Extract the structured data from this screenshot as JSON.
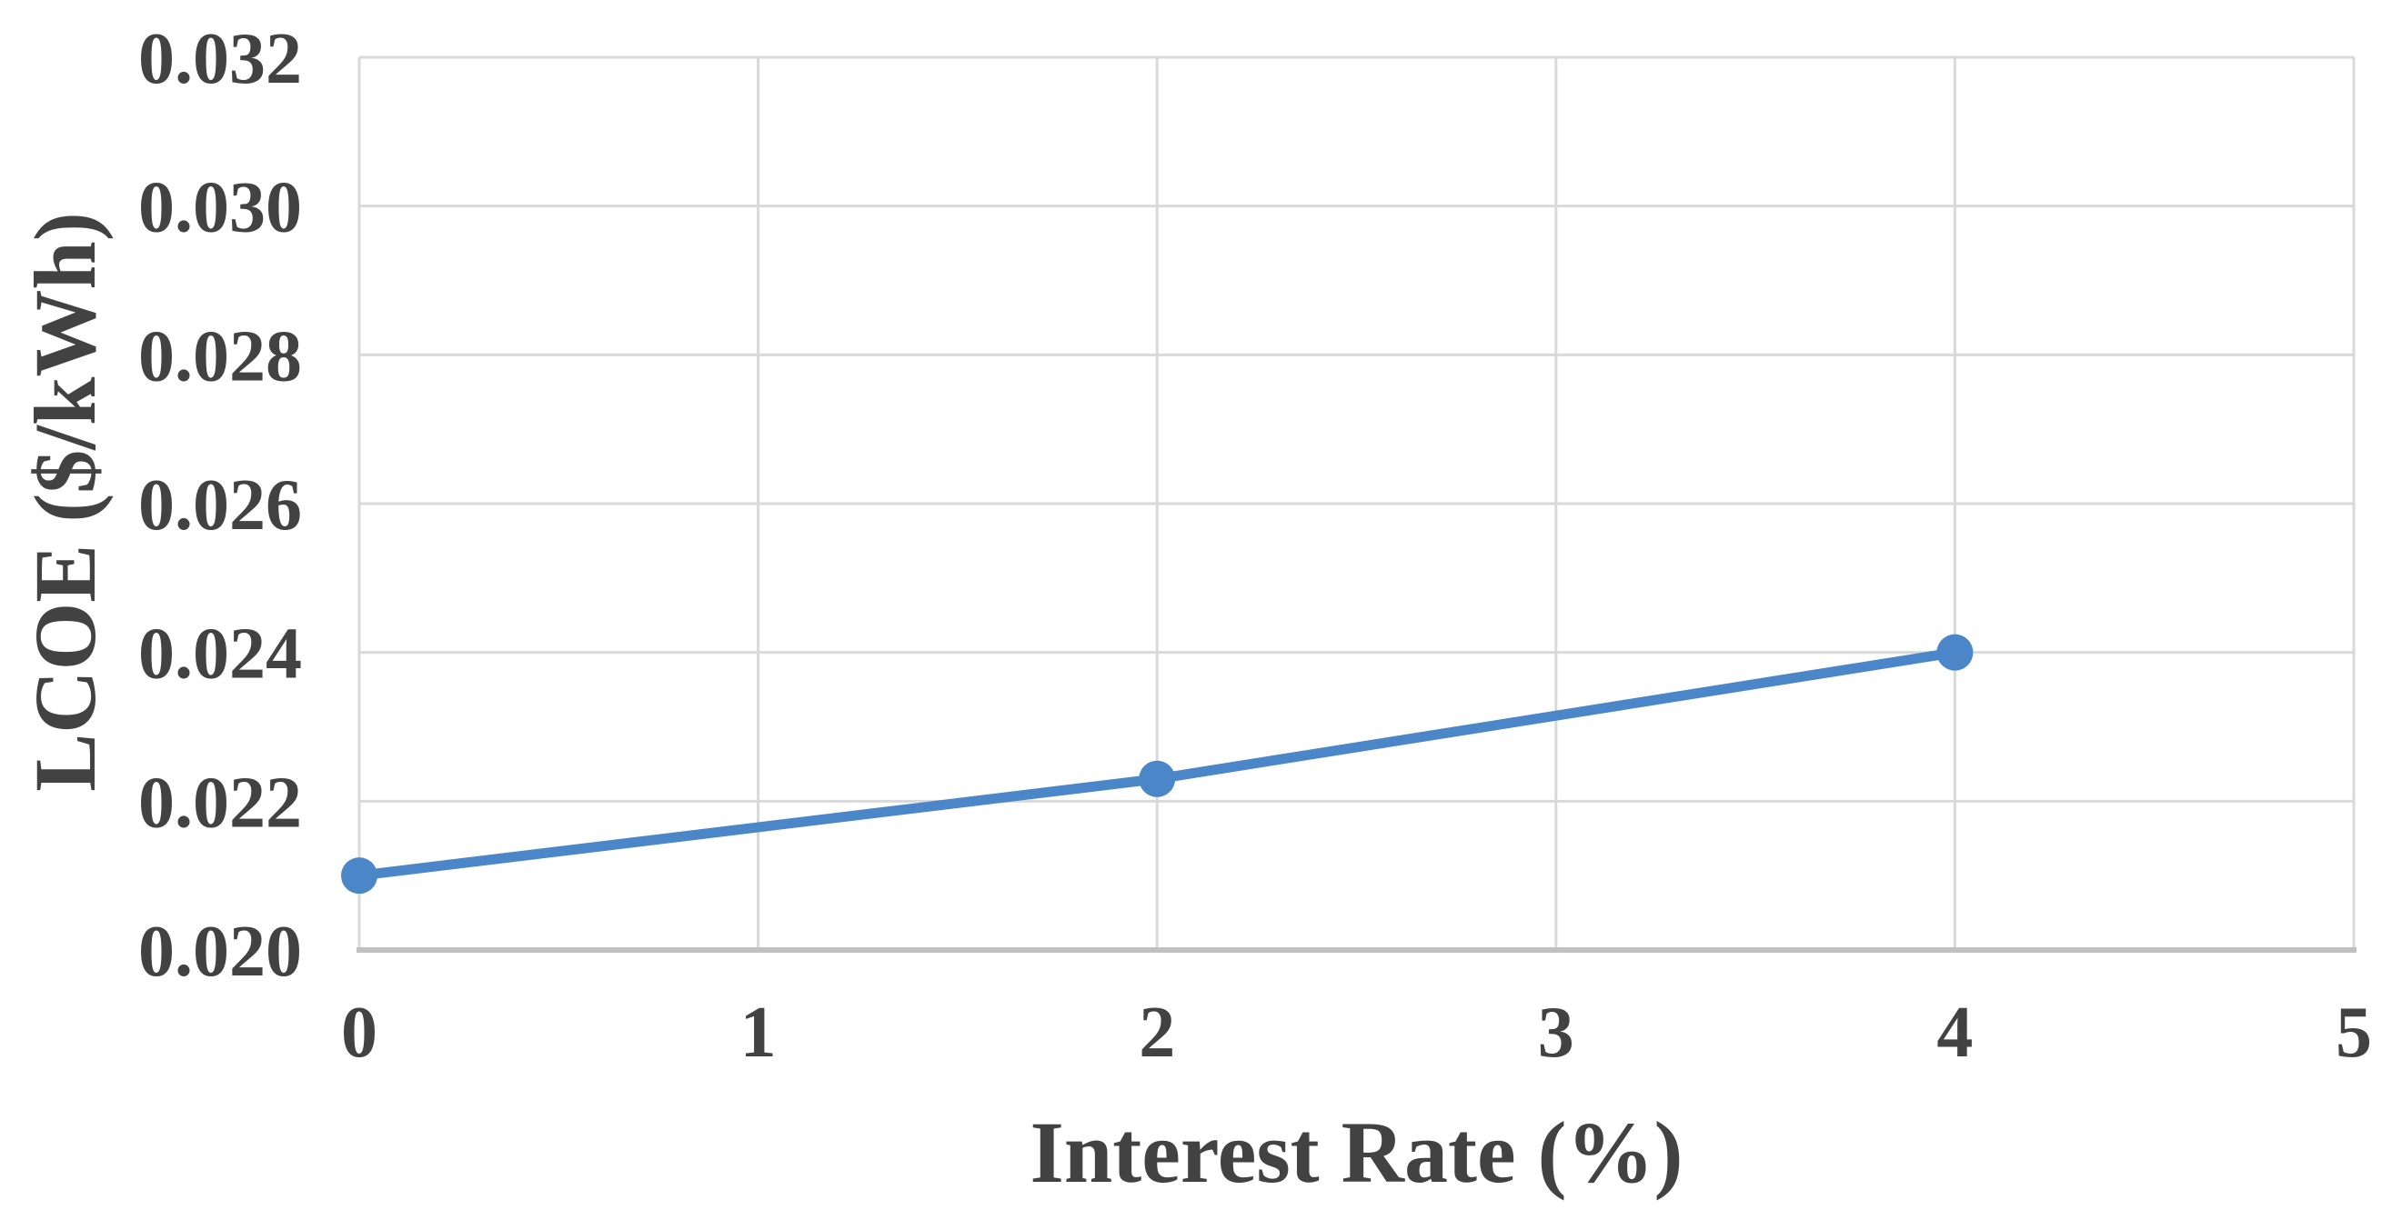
{
  "chart_data": {
    "type": "line",
    "title": "",
    "xlabel": "Interest Rate (%)",
    "ylabel": "LCOE ($/kWh)",
    "x": [
      0,
      2,
      4
    ],
    "series": [
      {
        "name": "LCOE",
        "values": [
          0.021,
          0.0223,
          0.024
        ]
      }
    ],
    "xlim": [
      0,
      5
    ],
    "ylim": [
      0.02,
      0.032
    ],
    "x_ticks": [
      0,
      1,
      2,
      3,
      4,
      5
    ],
    "x_tick_labels": [
      "0",
      "1",
      "2",
      "3",
      "4",
      "5"
    ],
    "y_ticks": [
      0.02,
      0.022,
      0.024,
      0.026,
      0.028,
      0.03,
      0.032
    ],
    "y_tick_labels": [
      "0.020",
      "0.022",
      "0.024",
      "0.026",
      "0.028",
      "0.030",
      "0.032"
    ],
    "grid": true,
    "legend": "none",
    "marker": "circle",
    "colors": {
      "series": "#4A86C8",
      "grid": "#D9D9D9",
      "axis": "#C0C0C0",
      "text": "#424242",
      "background": "#FFFFFF"
    }
  }
}
